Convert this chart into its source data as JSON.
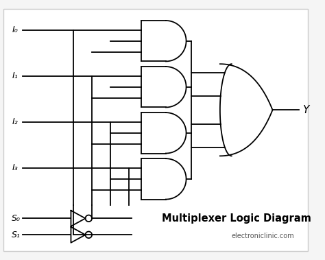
{
  "background_color": "#ffffff",
  "title": "Multiplexer Logic Diagram",
  "website": "electroniclinic.com",
  "line_color": "black",
  "line_width": 1.3,
  "inputs": [
    "I₀",
    "I₁",
    "I₂",
    "I₃"
  ],
  "selects": [
    "S₀",
    "S₁"
  ],
  "output_label": "Y",
  "fig_bg": "#f5f5f5"
}
